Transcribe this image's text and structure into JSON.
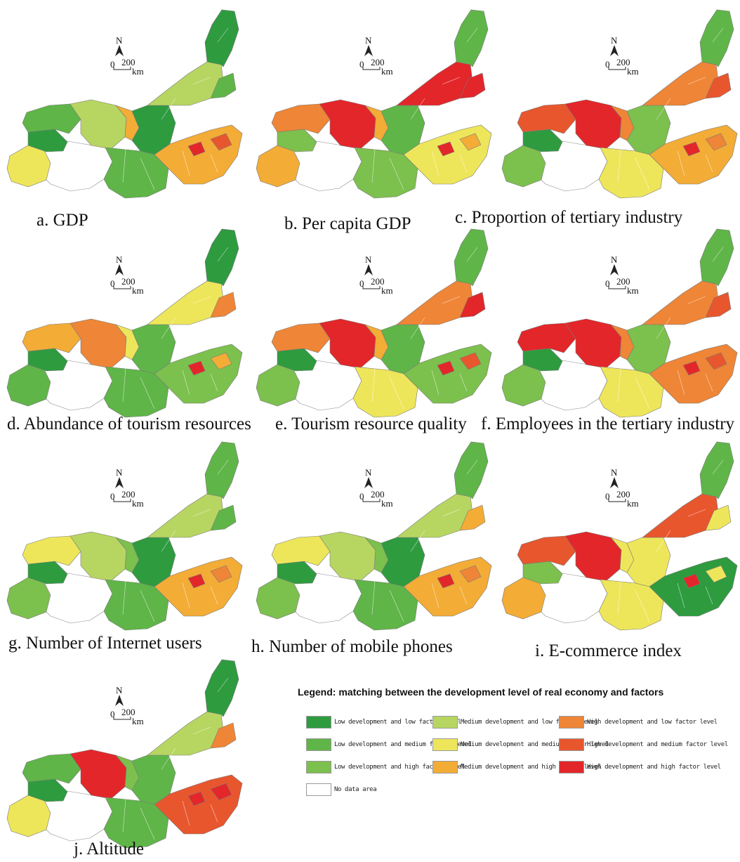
{
  "colors": {
    "c1": "#2e9b3f",
    "c2": "#5fb548",
    "c3": "#7cc04d",
    "c4": "#b7d661",
    "c5": "#eee65a",
    "c6": "#f3ac36",
    "c7": "#ef8536",
    "c8": "#e8562e",
    "c9": "#e3262a",
    "nodata": "#ffffff"
  },
  "scale": {
    "north": "N",
    "zero": "0",
    "distance": "200",
    "unit": "km"
  },
  "panels": [
    {
      "caption": "a. GDP",
      "regions": {
        "west_far": "c5",
        "west_mid": "c1",
        "west_nodata": "nodata",
        "northwest": "c2",
        "central_big": "c4",
        "central_right": "c6",
        "middle": "c1",
        "upper_belt": "c4",
        "northeast": "c1",
        "ne_tip": "c2",
        "south": "c2",
        "east": "c6",
        "hot1": "c9",
        "hot2": "c8"
      }
    },
    {
      "caption": "b. Per capita GDP",
      "regions": {
        "west_far": "c6",
        "west_mid": "c3",
        "west_nodata": "nodata",
        "northwest": "c7",
        "central_big": "c9",
        "central_right": "c6",
        "middle": "c2",
        "upper_belt": "c9",
        "northeast": "c2",
        "ne_tip": "c9",
        "south": "c3",
        "east": "c5",
        "hot1": "c9",
        "hot2": "c6"
      }
    },
    {
      "caption": "c. Proportion of tertiary industry",
      "regions": {
        "west_far": "c3",
        "west_mid": "c1",
        "west_nodata": "nodata",
        "northwest": "c8",
        "central_big": "c9",
        "central_right": "c7",
        "middle": "c3",
        "upper_belt": "c7",
        "northeast": "c2",
        "ne_tip": "c8",
        "south": "c5",
        "east": "c6",
        "hot1": "c9",
        "hot2": "c7"
      }
    },
    {
      "caption": "d. Abundance of tourism resources",
      "regions": {
        "west_far": "c2",
        "west_mid": "c1",
        "west_nodata": "nodata",
        "northwest": "c6",
        "central_big": "c7",
        "central_right": "c5",
        "middle": "c2",
        "upper_belt": "c5",
        "northeast": "c1",
        "ne_tip": "c7",
        "south": "c2",
        "east": "c3",
        "hot1": "c9",
        "hot2": "c6"
      }
    },
    {
      "caption": "e. Tourism resource quality",
      "regions": {
        "west_far": "c3",
        "west_mid": "c1",
        "west_nodata": "nodata",
        "northwest": "c7",
        "central_big": "c9",
        "central_right": "c6",
        "middle": "c2",
        "upper_belt": "c7",
        "northeast": "c2",
        "ne_tip": "c9",
        "south": "c5",
        "east": "c3",
        "hot1": "c9",
        "hot2": "c8"
      }
    },
    {
      "caption": "f. Employees in the tertiary industry",
      "regions": {
        "west_far": "c3",
        "west_mid": "c1",
        "west_nodata": "nodata",
        "northwest": "c9",
        "central_big": "c9",
        "central_right": "c7",
        "middle": "c3",
        "upper_belt": "c7",
        "northeast": "c2",
        "ne_tip": "c8",
        "south": "c5",
        "east": "c7",
        "hot1": "c9",
        "hot2": "c8"
      }
    },
    {
      "caption": "g. Number of Internet users",
      "regions": {
        "west_far": "c3",
        "west_mid": "c1",
        "west_nodata": "nodata",
        "northwest": "c5",
        "central_big": "c4",
        "central_right": "c3",
        "middle": "c1",
        "upper_belt": "c4",
        "northeast": "c2",
        "ne_tip": "c2",
        "south": "c2",
        "east": "c6",
        "hot1": "c9",
        "hot2": "c7"
      }
    },
    {
      "caption": "h. Number of mobile phones",
      "regions": {
        "west_far": "c3",
        "west_mid": "c1",
        "west_nodata": "nodata",
        "northwest": "c5",
        "central_big": "c4",
        "central_right": "c3",
        "middle": "c1",
        "upper_belt": "c4",
        "northeast": "c2",
        "ne_tip": "c6",
        "south": "c2",
        "east": "c6",
        "hot1": "c9",
        "hot2": "c7"
      }
    },
    {
      "caption": "i. E-commerce index",
      "regions": {
        "west_far": "c6",
        "west_mid": "c3",
        "west_nodata": "nodata",
        "northwest": "c8",
        "central_big": "c9",
        "central_right": "c5",
        "middle": "c5",
        "upper_belt": "c8",
        "northeast": "c2",
        "ne_tip": "c5",
        "south": "c5",
        "east": "c1",
        "hot1": "c9",
        "hot2": "c5"
      }
    },
    {
      "caption": "j. Altitude",
      "regions": {
        "west_far": "c5",
        "west_mid": "c1",
        "west_nodata": "nodata",
        "northwest": "c2",
        "central_big": "c9",
        "central_right": "c3",
        "middle": "c2",
        "upper_belt": "c4",
        "northeast": "c1",
        "ne_tip": "c7",
        "south": "c2",
        "east": "c8",
        "hot1": "c9",
        "hot2": "c9"
      }
    }
  ],
  "legend": {
    "title": "Legend: matching between the development level of real economy and factors",
    "items": [
      {
        "label": "Low development and low factor level",
        "color": "c1"
      },
      {
        "label": "Medium development and low factor level",
        "color": "c4"
      },
      {
        "label": "High development and low factor level",
        "color": "c7"
      },
      {
        "label": "Low development and medium factor level",
        "color": "c2"
      },
      {
        "label": "Medium development and medium factor level",
        "color": "c5"
      },
      {
        "label": "High development and medium factor level",
        "color": "c8"
      },
      {
        "label": "Low development and high factor level",
        "color": "c3"
      },
      {
        "label": "Medium development and high factor level",
        "color": "c6"
      },
      {
        "label": "High development and high factor level",
        "color": "c9"
      },
      {
        "label": "No data area",
        "color": "nodata"
      }
    ]
  }
}
